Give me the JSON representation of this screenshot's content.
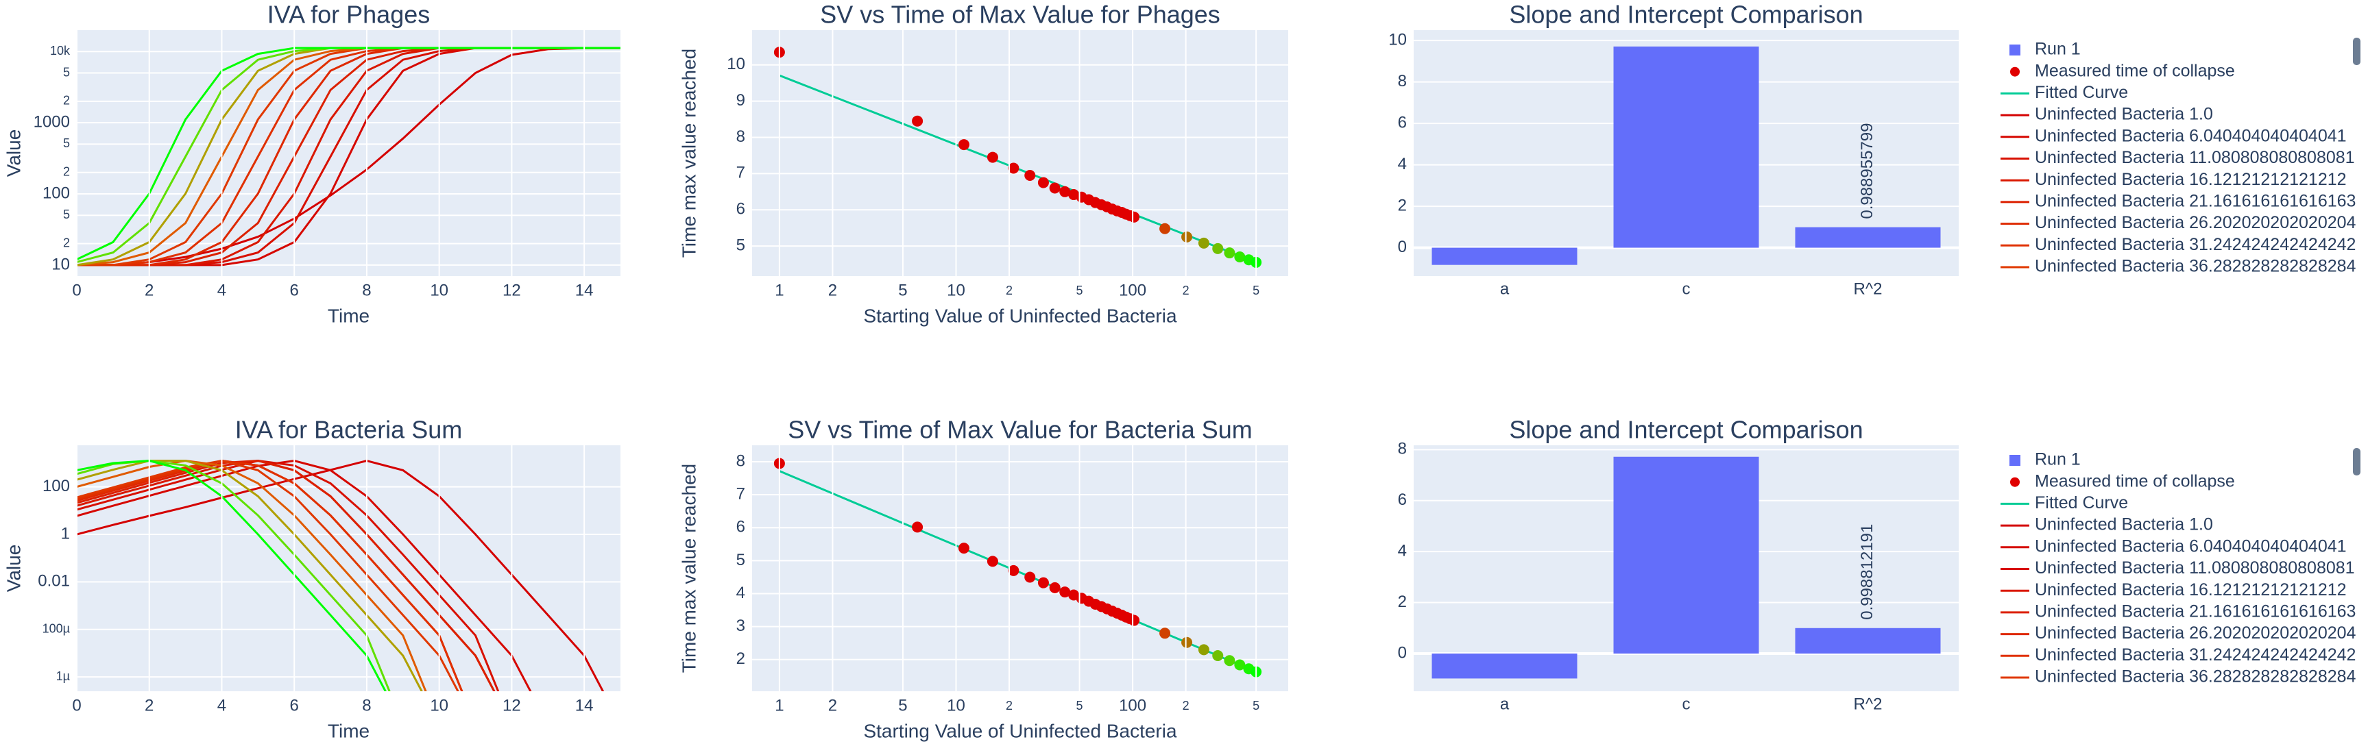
{
  "chart_data": [
    {
      "type": "line",
      "title": "IVA for Phages",
      "xlabel": "Time",
      "ylabel": "Value",
      "log_y": true,
      "grid": true,
      "xlim": [
        0,
        15
      ],
      "xticks": [
        0,
        2,
        4,
        6,
        8,
        10,
        12,
        14
      ],
      "ylim": [
        7,
        20000
      ],
      "yticks": [
        10,
        {
          "value": 20,
          "label": "2"
        },
        {
          "value": 50,
          "label": "5"
        },
        100,
        {
          "value": 200,
          "label": "2"
        },
        {
          "value": 500,
          "label": "5"
        },
        1000,
        {
          "value": 2000,
          "label": "2"
        },
        {
          "value": 5000,
          "label": "5"
        },
        {
          "value": 10000,
          "label": "10k"
        }
      ],
      "x": [
        0,
        1,
        2,
        3,
        4,
        5,
        6,
        7,
        8,
        9,
        10,
        11,
        12,
        13,
        14,
        15
      ],
      "series": [
        {
          "name": "Uninfected Bacteria 1.0",
          "color": "#d40000",
          "values": [
            10,
            10,
            11,
            13,
            17,
            25,
            45,
            95,
            220,
            600,
            1800,
            5000,
            9000,
            10800,
            11200,
            11220
          ]
        },
        {
          "name": "Uninfected Bacteria 6.040404040404041",
          "color": "#d60800",
          "values": [
            10,
            10,
            10,
            10,
            10,
            12,
            21,
            101,
            1114,
            5370,
            9290,
            11220,
            11220,
            11220,
            11220,
            11220
          ]
        },
        {
          "name": "Uninfected Bacteria 11.080808080808081",
          "color": "#d81000",
          "values": [
            10,
            10,
            10,
            10,
            11,
            15,
            39,
            335,
            2891,
            7670,
            10160,
            11220,
            11220,
            11220,
            11220,
            11220
          ]
        },
        {
          "name": "Uninfected Bacteria 16.12121212121212",
          "color": "#da1800",
          "values": [
            10,
            10,
            10,
            10,
            12,
            21,
            101,
            1114,
            5370,
            9290,
            11220,
            11220,
            11220,
            11220,
            11220,
            11220
          ]
        },
        {
          "name": "Uninfected Bacteria 21.161616161616163",
          "color": "#dc2000",
          "values": [
            10,
            10,
            10,
            11,
            15,
            39,
            335,
            2891,
            7670,
            10160,
            11220,
            11220,
            11220,
            11220,
            11220,
            11220
          ]
        },
        {
          "name": "Uninfected Bacteria 26.202020202020204",
          "color": "#de2800",
          "values": [
            10,
            10,
            10,
            12,
            21,
            101,
            1114,
            5370,
            9290,
            11220,
            11220,
            11220,
            11220,
            11220,
            11220,
            11220
          ]
        },
        {
          "name": "Uninfected Bacteria 31.242424242424242",
          "color": "#e03000",
          "values": [
            10,
            10,
            11,
            15,
            39,
            335,
            2891,
            7670,
            10160,
            11220,
            11220,
            11220,
            11220,
            11220,
            11220,
            11220
          ]
        },
        {
          "name": "Uninfected Bacteria 36.282828282828284",
          "color": "#e03800",
          "values": [
            10,
            10,
            12,
            21,
            101,
            1114,
            5370,
            9290,
            11220,
            11220,
            11220,
            11220,
            11220,
            11220,
            11220,
            11220
          ]
        },
        {
          "color": "#e05a00",
          "values": [
            10,
            11,
            15,
            39,
            335,
            2891,
            7670,
            10160,
            11220,
            11220,
            11220,
            11220,
            11220,
            11220,
            11220,
            11220
          ]
        },
        {
          "color": "#b0a000",
          "values": [
            10,
            12,
            21,
            101,
            1114,
            5370,
            9290,
            11220,
            11220,
            11220,
            11220,
            11220,
            11220,
            11220,
            11220,
            11220
          ]
        },
        {
          "color": "#60e000",
          "values": [
            11,
            15,
            39,
            335,
            2891,
            7670,
            10160,
            11220,
            11220,
            11220,
            11220,
            11220,
            11220,
            11220,
            11220,
            11220
          ]
        },
        {
          "color": "#00ff00",
          "values": [
            12,
            21,
            101,
            1114,
            5370,
            9290,
            11220,
            11220,
            11220,
            11220,
            11220,
            11220,
            11220,
            11220,
            11220,
            11220
          ]
        }
      ]
    },
    {
      "type": "scatter",
      "title": "SV vs Time of Max Value for Phages",
      "xlabel": "Starting Value of Uninfected Bacteria",
      "ylabel": "Time max value reached",
      "log_x": true,
      "grid": true,
      "xlim": [
        0.7,
        760
      ],
      "xticks": [
        1,
        2,
        5,
        10,
        {
          "value": 20,
          "label": "2"
        },
        {
          "value": 50,
          "label": "5"
        },
        100,
        {
          "value": 200,
          "label": "2"
        },
        {
          "value": 500,
          "label": "5"
        }
      ],
      "ylim": [
        4.17,
        10.96
      ],
      "yticks": [
        5,
        6,
        7,
        8,
        9,
        10
      ],
      "series": [
        {
          "name": "Measured time of collapse",
          "mode": "markers",
          "color": "#e00000",
          "x": [
            1,
            6.04,
            11.08,
            16.12,
            21.16,
            26.2,
            31.24,
            36.28,
            41.32,
            46.36,
            51.4,
            56.44,
            61.48,
            66.52,
            71.56,
            76.6,
            81.64,
            86.68,
            91.72,
            96.76,
            101.8,
            152.2,
            202.6,
            253,
            303.4,
            353.8,
            404.2,
            454.6,
            500
          ],
          "values": [
            10.35,
            8.45,
            7.8,
            7.45,
            7.15,
            6.95,
            6.75,
            6.6,
            6.5,
            6.42,
            6.35,
            6.28,
            6.2,
            6.14,
            6.08,
            6.02,
            5.97,
            5.93,
            5.88,
            5.84,
            5.8,
            5.48,
            5.25,
            5.08,
            4.93,
            4.81,
            4.7,
            4.62,
            4.55
          ],
          "colors": [
            "#e00000",
            "#e00000",
            "#e00000",
            "#e00000",
            "#e00000",
            "#e00000",
            "#e00000",
            "#e00000",
            "#e00000",
            "#e00000",
            "#e00000",
            "#e00000",
            "#e00000",
            "#e00000",
            "#e00000",
            "#e00000",
            "#e00000",
            "#e00000",
            "#e00000",
            "#e00000",
            "#e00000",
            "#d04000",
            "#b07000",
            "#90a000",
            "#70c000",
            "#50d800",
            "#30e800",
            "#18f500",
            "#00ff00"
          ]
        },
        {
          "name": "Fitted Curve",
          "mode": "lines",
          "color": "#00cc96",
          "x": [
            1,
            2,
            5,
            10,
            20,
            50,
            100,
            200,
            500
          ],
          "values": [
            9.71,
            9.135,
            8.374,
            7.799,
            7.224,
            6.463,
            5.888,
            5.312,
            4.552
          ]
        }
      ]
    },
    {
      "type": "bar",
      "title": "Slope and Intercept Comparison",
      "grid": true,
      "categories": [
        "a",
        "c",
        "R^2"
      ],
      "ylim": [
        -1.37,
        10.5
      ],
      "yticks": [
        0,
        2,
        4,
        6,
        8,
        10
      ],
      "series": [
        {
          "name": "Run 1",
          "color": "#636efa",
          "values": [
            -0.83,
            9.71,
            0.988955799
          ],
          "value_labels": [
            null,
            null,
            "0.988955799"
          ]
        }
      ]
    },
    {
      "type": "line",
      "title": "IVA for Bacteria Sum",
      "xlabel": "Time",
      "ylabel": "Value",
      "log_y": true,
      "grid": true,
      "xlim": [
        0,
        15
      ],
      "xticks": [
        0,
        2,
        4,
        6,
        8,
        10,
        12,
        14
      ],
      "ylim": [
        2.5e-07,
        5600
      ],
      "yticks": [
        {
          "value": 1e-06,
          "label": "1µ"
        },
        {
          "value": 0.0001,
          "label": "100µ"
        },
        0.01,
        1,
        100
      ],
      "x": [
        0,
        1,
        2,
        3,
        4,
        5,
        6,
        7,
        8,
        9,
        10,
        11,
        12,
        13,
        14,
        15
      ],
      "series": [
        {
          "name": "Uninfected Bacteria 1.0",
          "color": "#d40000",
          "values": [
            1,
            2.5,
            6,
            14,
            35,
            87,
            214,
            513,
            1260,
            500,
            40,
            1,
            0.02,
            0.0004,
            7.9e-06,
            1e-08
          ]
        },
        {
          "name": "Uninfected Bacteria 6.040404040404041",
          "color": "#d60800",
          "values": [
            6,
            16,
            42,
            110,
            290,
            760,
            1260,
            500,
            40,
            1,
            0.02,
            0.0004,
            7.9e-06,
            1e-08,
            null,
            null
          ]
        },
        {
          "name": "Uninfected Bacteria 11.080808080808081",
          "color": "#d81000",
          "values": [
            11,
            29,
            76,
            200,
            525,
            1260,
            794,
            141,
            6.3,
            0.14,
            0.0028,
            5.6e-05,
            1e-08,
            null,
            null,
            null
          ]
        },
        {
          "name": "Uninfected Bacteria 16.12121212121212",
          "color": "#da1800",
          "values": [
            16,
            43,
            112,
            295,
            776,
            1260,
            500,
            40,
            1,
            0.02,
            0.0004,
            7.9e-06,
            1e-08,
            null,
            null,
            null
          ]
        },
        {
          "name": "Uninfected Bacteria 21.161616161616163",
          "color": "#dc2000",
          "values": [
            21,
            56,
            148,
            389,
            1020,
            1260,
            500,
            40,
            1,
            0.02,
            0.0004,
            7.9e-06,
            1e-08,
            null,
            null,
            null
          ]
        },
        {
          "name": "Uninfected Bacteria 26.202020202020204",
          "color": "#de2800",
          "values": [
            26,
            69,
            182,
            479,
            1260,
            794,
            141,
            6.3,
            0.14,
            0.0028,
            5.6e-05,
            1e-08,
            null,
            null,
            null,
            null
          ]
        },
        {
          "name": "Uninfected Bacteria 31.242424242424242",
          "color": "#e03000",
          "values": [
            31,
            81,
            214,
            562,
            1260,
            794,
            141,
            6.3,
            0.14,
            0.0028,
            5.6e-05,
            1e-08,
            null,
            null,
            null,
            null
          ]
        },
        {
          "name": "Uninfected Bacteria 36.282828282828284",
          "color": "#e03800",
          "values": [
            36,
            95,
            251,
            661,
            1260,
            500,
            40,
            1,
            0.02,
            0.0004,
            7.9e-06,
            1e-08,
            null,
            null,
            null,
            null
          ]
        },
        {
          "color": "#e05a00",
          "values": [
            100,
            263,
            692,
            1260,
            794,
            141,
            6.3,
            0.14,
            0.0028,
            5.6e-05,
            1e-08,
            null,
            null,
            null,
            null,
            null
          ]
        },
        {
          "color": "#b0a000",
          "values": [
            200,
            525,
            1260,
            1260,
            500,
            40,
            1,
            0.02,
            0.0004,
            7.9e-06,
            1e-08,
            null,
            null,
            null,
            null,
            null
          ]
        },
        {
          "color": "#60e000",
          "values": [
            350,
            912,
            1260,
            794,
            141,
            6.3,
            0.14,
            0.0028,
            5.6e-05,
            1e-08,
            null,
            null,
            null,
            null,
            null,
            null
          ]
        },
        {
          "color": "#00ff00",
          "values": [
            500,
            1000,
            1260,
            500,
            40,
            1,
            0.02,
            0.0004,
            7.9e-06,
            1e-08,
            null,
            null,
            null,
            null,
            null,
            null
          ]
        }
      ]
    },
    {
      "type": "scatter",
      "title": "SV vs Time of Max Value for Bacteria Sum",
      "xlabel": "Starting Value of Uninfected Bacteria",
      "ylabel": "Time max value reached",
      "log_x": true,
      "grid": true,
      "xlim": [
        0.7,
        760
      ],
      "xticks": [
        1,
        2,
        5,
        10,
        {
          "value": 20,
          "label": "2"
        },
        {
          "value": 50,
          "label": "5"
        },
        100,
        {
          "value": 200,
          "label": "2"
        },
        {
          "value": 500,
          "label": "5"
        }
      ],
      "ylim": [
        1.04,
        8.5
      ],
      "yticks": [
        2,
        3,
        4,
        5,
        6,
        7,
        8
      ],
      "series": [
        {
          "name": "Measured time of collapse",
          "mode": "markers",
          "color": "#e00000",
          "x": [
            1,
            6.04,
            11.08,
            16.12,
            21.16,
            26.2,
            31.24,
            36.28,
            41.32,
            46.36,
            51.4,
            56.44,
            61.48,
            66.52,
            71.56,
            76.6,
            81.64,
            86.68,
            91.72,
            96.76,
            101.8,
            152.2,
            202.6,
            253,
            303.4,
            353.8,
            404.2,
            454.6,
            500
          ],
          "values": [
            7.95,
            6.02,
            5.38,
            4.98,
            4.7,
            4.5,
            4.33,
            4.18,
            4.05,
            3.96,
            3.86,
            3.77,
            3.68,
            3.61,
            3.54,
            3.47,
            3.41,
            3.35,
            3.29,
            3.24,
            3.19,
            2.8,
            2.52,
            2.3,
            2.12,
            1.97,
            1.84,
            1.72,
            1.63
          ],
          "colors": [
            "#e00000",
            "#e00000",
            "#e00000",
            "#e00000",
            "#e00000",
            "#e00000",
            "#e00000",
            "#e00000",
            "#e00000",
            "#e00000",
            "#e00000",
            "#e00000",
            "#e00000",
            "#e00000",
            "#e00000",
            "#e00000",
            "#e00000",
            "#e00000",
            "#e00000",
            "#e00000",
            "#e00000",
            "#d04000",
            "#b07000",
            "#90a000",
            "#70c000",
            "#50d800",
            "#30e800",
            "#18f500",
            "#00ff00"
          ]
        },
        {
          "name": "Fitted Curve",
          "mode": "lines",
          "color": "#00cc96",
          "x": [
            1,
            2,
            5,
            10,
            20,
            50,
            100,
            200,
            500
          ],
          "values": [
            7.72,
            7.04,
            6.14,
            5.46,
            4.78,
            3.89,
            3.21,
            2.53,
            1.63
          ]
        }
      ]
    },
    {
      "type": "bar",
      "title": "Slope and Intercept Comparison",
      "grid": true,
      "categories": [
        "a",
        "c",
        "R^2"
      ],
      "ylim": [
        -1.48,
        8.17
      ],
      "yticks": [
        0,
        2,
        4,
        6,
        8
      ],
      "series": [
        {
          "name": "Run 1",
          "color": "#636efa",
          "values": [
            -0.98,
            7.72,
            0.998812191
          ],
          "value_labels": [
            null,
            null,
            "0.998812191"
          ]
        }
      ]
    }
  ]
}
